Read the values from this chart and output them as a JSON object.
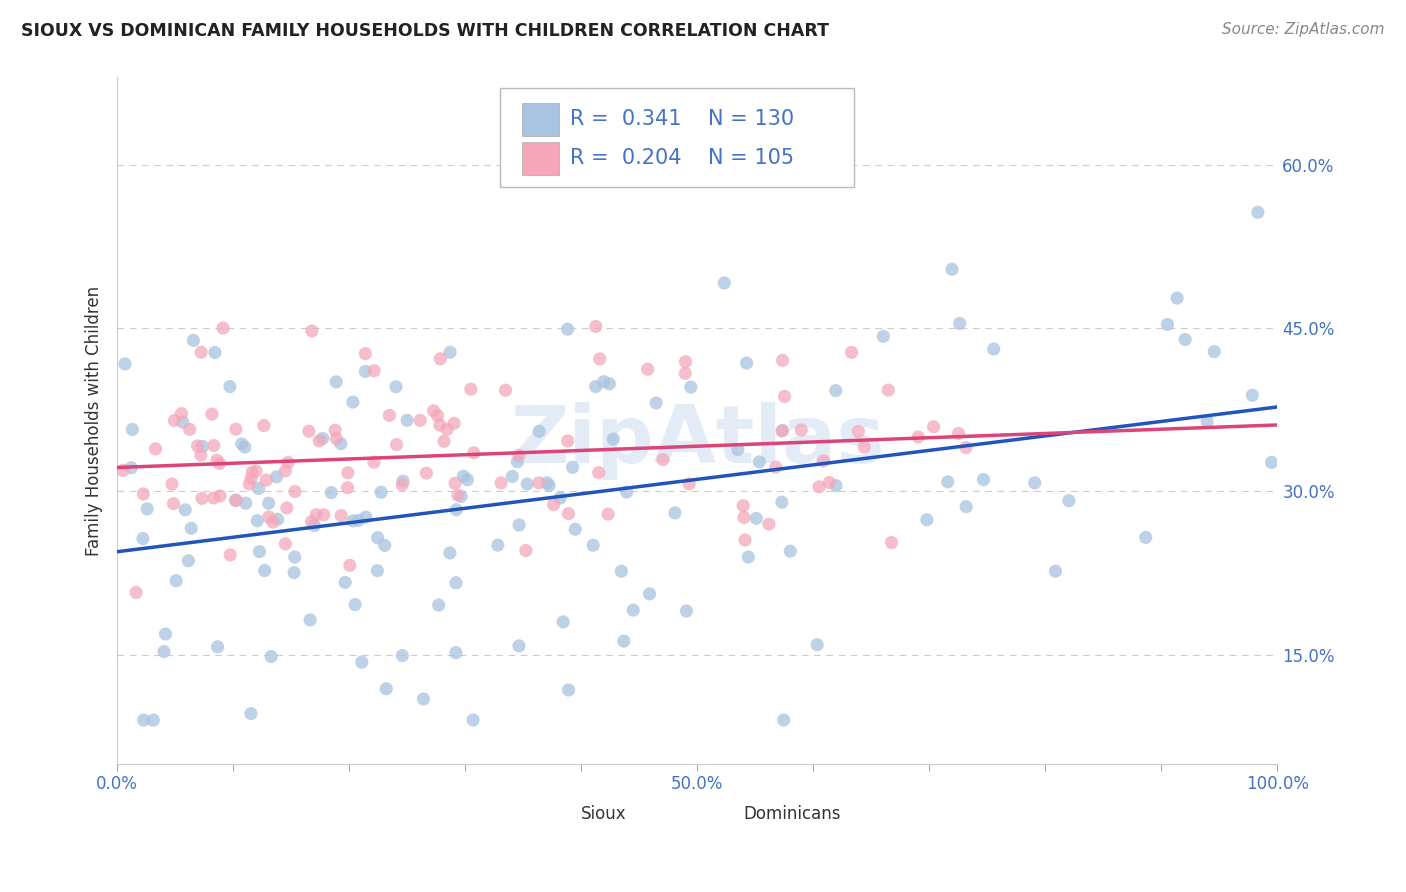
{
  "title": "SIOUX VS DOMINICAN FAMILY HOUSEHOLDS WITH CHILDREN CORRELATION CHART",
  "source": "Source: ZipAtlas.com",
  "ylabel": "Family Households with Children",
  "xlim": [
    0.0,
    1.0
  ],
  "ylim": [
    0.05,
    0.68
  ],
  "ytick_positions": [
    0.15,
    0.3,
    0.45,
    0.6
  ],
  "ytick_labels": [
    "15.0%",
    "30.0%",
    "45.0%",
    "60.0%"
  ],
  "xtick_positions": [
    0.0,
    0.1,
    0.2,
    0.3,
    0.4,
    0.5,
    0.6,
    0.7,
    0.8,
    0.9,
    1.0
  ],
  "sioux_color": "#a8c4e0",
  "dominican_color": "#f4a7b9",
  "sioux_line_color": "#2255bb",
  "dominican_line_color": "#dd4477",
  "sioux_R": 0.341,
  "sioux_N": 130,
  "dominican_R": 0.204,
  "dominican_N": 105,
  "legend_color": "#4472c4",
  "watermark_color": "#c8d8ee",
  "background_color": "#ffffff",
  "grid_color": "#cccccc",
  "title_color": "#222222",
  "source_color": "#888888",
  "axis_label_color": "#333333",
  "tick_color": "#4472c4"
}
